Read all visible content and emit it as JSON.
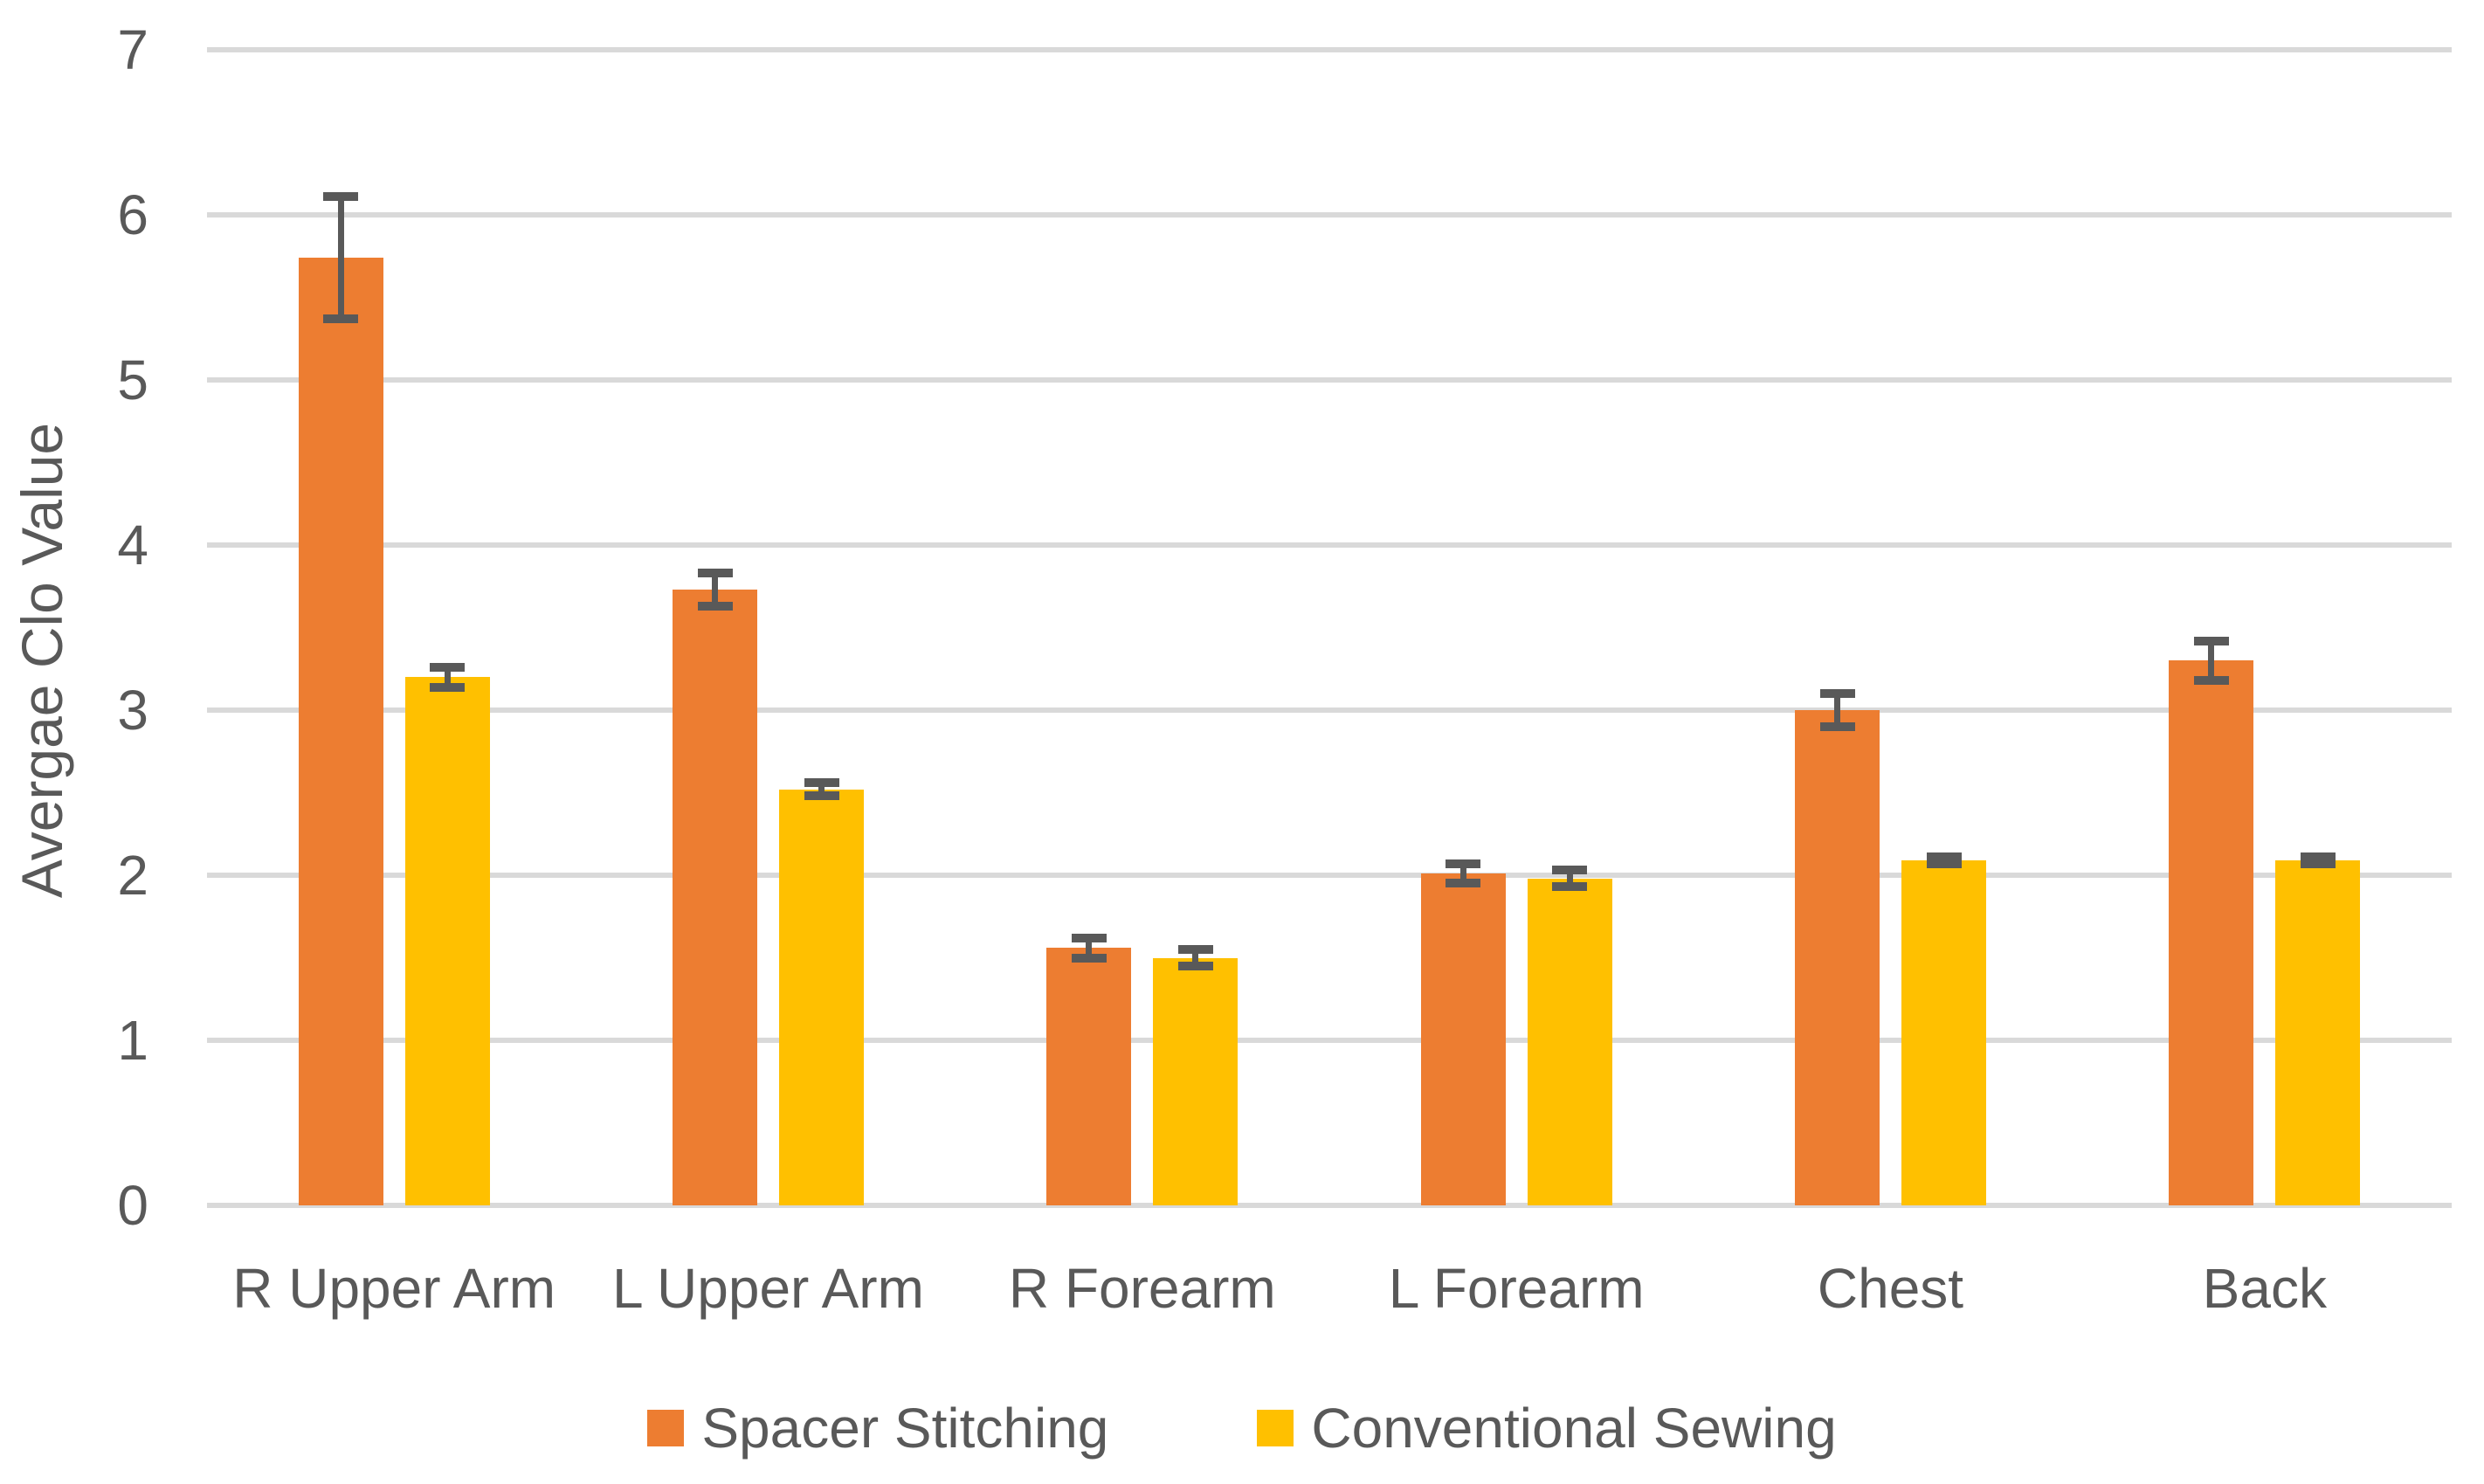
{
  "chart_data": {
    "type": "bar",
    "title": "",
    "xlabel": "",
    "ylabel": "Avergae Clo Value",
    "ylim": [
      0,
      7
    ],
    "y_ticks": [
      0,
      1,
      2,
      3,
      4,
      5,
      6,
      7
    ],
    "grid": true,
    "legend_position": "bottom-center",
    "categories": [
      "R Upper Arm",
      "L Upper Arm",
      "R Forearm",
      "L Forearm",
      "Chest",
      "Back"
    ],
    "series": [
      {
        "name": "Spacer Stitching",
        "color": "#ED7D31",
        "values": [
          5.74,
          3.73,
          1.56,
          2.01,
          3.0,
          3.3
        ],
        "errors": [
          0.37,
          0.1,
          0.06,
          0.06,
          0.1,
          0.12
        ]
      },
      {
        "name": "Conventional Sewing",
        "color": "#FFC000",
        "values": [
          3.2,
          2.52,
          1.5,
          1.98,
          2.09,
          2.09
        ],
        "errors": [
          0.06,
          0.04,
          0.05,
          0.05,
          0.02,
          0.02
        ]
      }
    ],
    "colors": {
      "text": "#595959",
      "gridline": "#D9D9D9",
      "error_bar": "#595959",
      "background": "#FFFFFF"
    }
  }
}
